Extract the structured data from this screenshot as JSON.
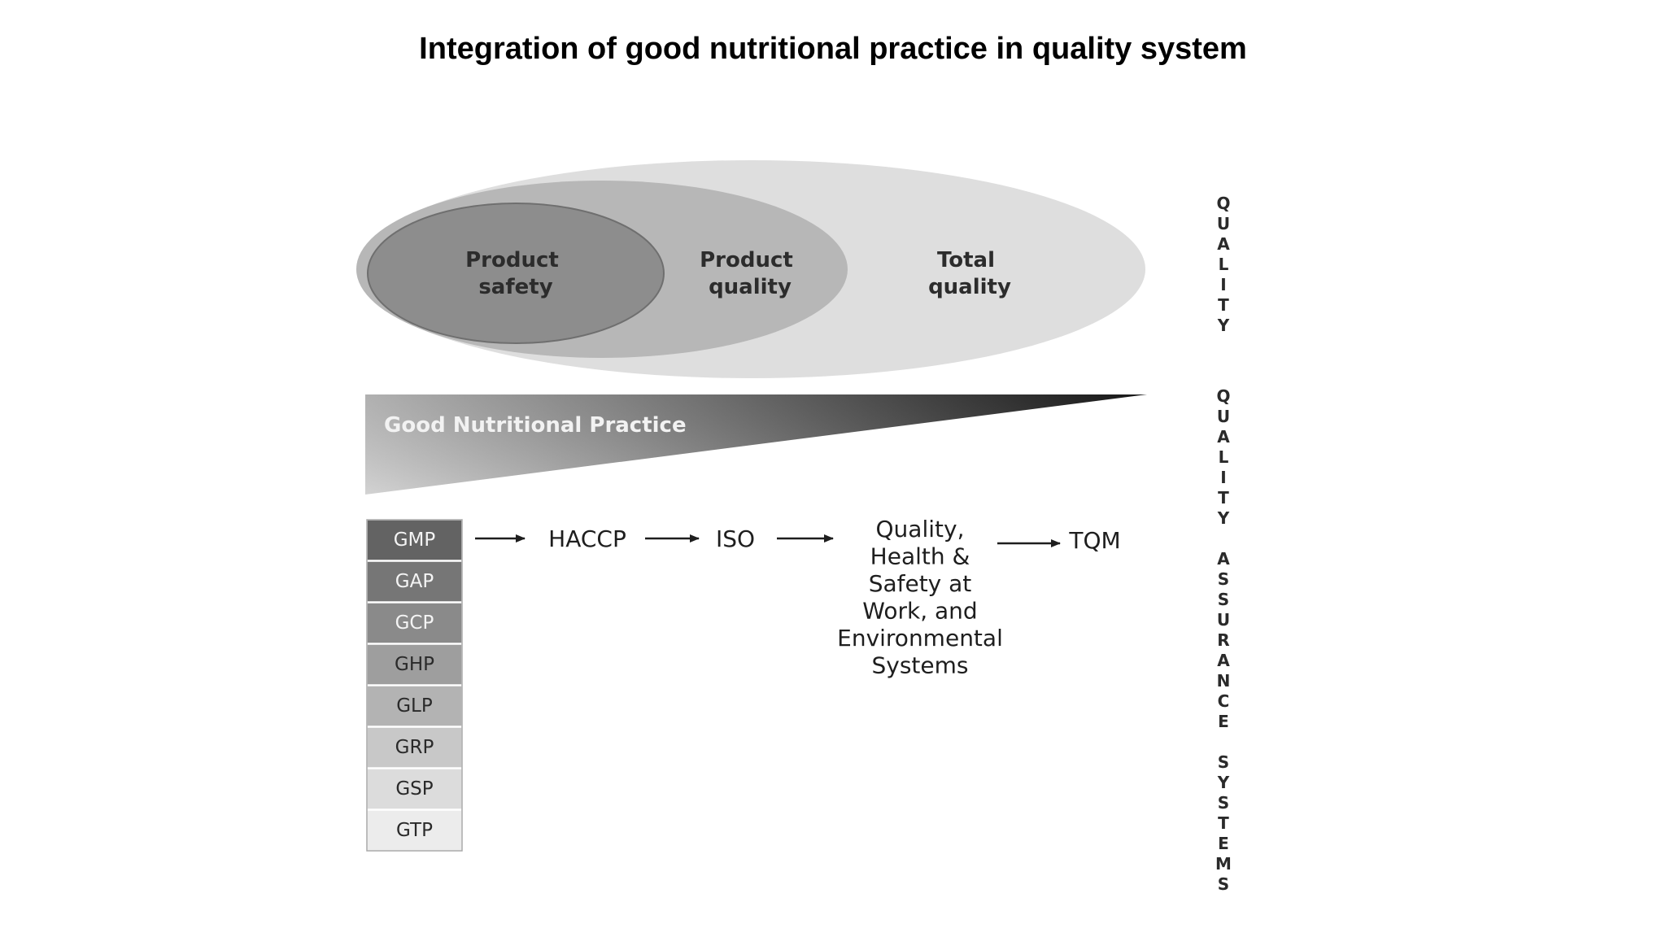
{
  "title": "Integration of good nutritional practice in quality system",
  "quality_scope": {
    "outer": "Total quality",
    "middle": "Product quality",
    "inner": "Product safety"
  },
  "wedge_label": "Good Nutritional Practice",
  "practices": [
    "GMP",
    "GAP",
    "GCP",
    "GHP",
    "GLP",
    "GRP",
    "GSP",
    "GTP"
  ],
  "practice_fills": [
    "#636363",
    "#767676",
    "#8a8a8a",
    "#9e9e9e",
    "#b3b3b3",
    "#c8c8c8",
    "#dcdcdc",
    "#ececec"
  ],
  "flow_steps": [
    "HACCP",
    "ISO",
    "Quality, Health & Safety at Work, and Environmental Systems",
    "TQM"
  ],
  "side_labels": {
    "quality": "QUALITY",
    "assurance": "QUALITY ASSURANCE SYSTEMS"
  }
}
